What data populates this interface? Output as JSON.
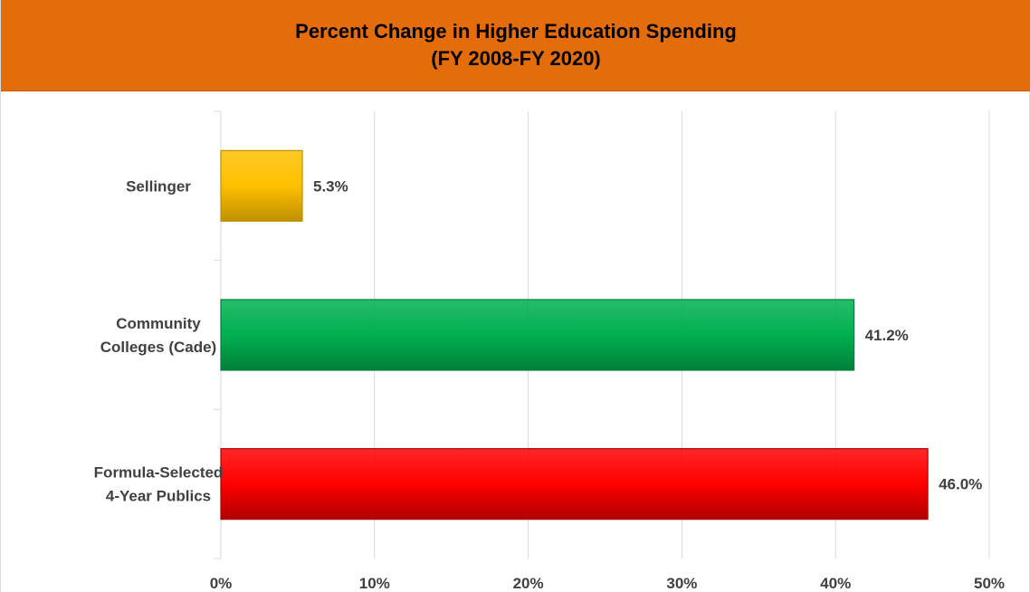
{
  "chart_data": {
    "type": "bar",
    "orientation": "horizontal",
    "title_line1": "Percent Change in Higher Education Spending",
    "title_line2": "(FY 2008-FY 2020)",
    "categories": [
      [
        "Sellinger"
      ],
      [
        "Community",
        "Colleges (Cade)"
      ],
      [
        "Formula-Selected",
        "4-Year Publics"
      ]
    ],
    "values": [
      5.3,
      41.2,
      46.0
    ],
    "data_labels": [
      "5.3%",
      "41.2%",
      "46.0%"
    ],
    "bar_colors": [
      "#ffc000",
      "#00b050",
      "#ff0000"
    ],
    "bar_edge_colors": [
      "#bf9000",
      "#00803a",
      "#b00000"
    ],
    "xlim": [
      0,
      50
    ],
    "x_ticks": [
      0,
      10,
      20,
      30,
      40,
      50
    ],
    "x_tick_labels": [
      "0%",
      "10%",
      "20%",
      "30%",
      "40%",
      "50%"
    ],
    "grid": true,
    "legend": "none",
    "title_band_color": "#e46c0a"
  }
}
